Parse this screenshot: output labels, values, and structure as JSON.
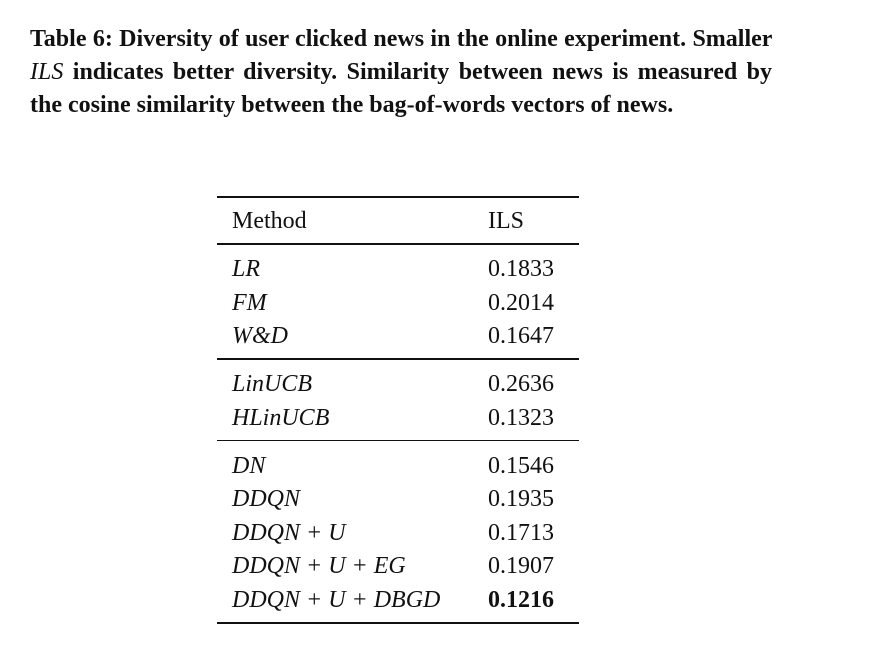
{
  "caption": {
    "parts": [
      "Table 6: Diversity of user clicked news in the online experiment. Smaller ",
      "ILS",
      " indicates better diversity. Similarity between news is measured by the cosine similarity between the bag-of-words vectors of news."
    ]
  },
  "table": {
    "header": [
      "Method",
      "ILS"
    ],
    "groups": [
      [
        {
          "method": "LR",
          "ils": 0.1833
        },
        {
          "method": "FM",
          "ils": 0.2014
        },
        {
          "method": "W&D",
          "ils": 0.1647
        }
      ],
      [
        {
          "method": "LinUCB",
          "ils": 0.2636
        },
        {
          "method": "HLinUCB",
          "ils": 0.1323
        }
      ],
      [
        {
          "method": "DN",
          "ils": 0.1546
        },
        {
          "method": "DDQN",
          "ils": 0.1935
        },
        {
          "method": "DDQN + U",
          "ils": 0.1713
        },
        {
          "method": "DDQN + U + EG",
          "ils": 0.1907
        },
        {
          "method": "DDQN + U + DBGD",
          "ils": 0.1216,
          "bold": true
        }
      ]
    ]
  }
}
